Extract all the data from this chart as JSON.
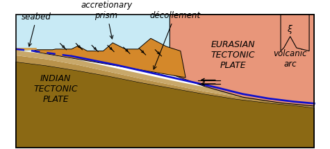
{
  "bg_color": "#ffffff",
  "ocean_color": "#c8eaf5",
  "indian_plate_dark": "#8b6914",
  "indian_plate_mid": "#b8924a",
  "indian_plate_light": "#c8a86a",
  "eurasian_color": "#e8967a",
  "sediment_orange": "#d4882a",
  "sediment_light": "#e8b870",
  "thin_sed_color": "#d4a050",
  "decollement_color": "#1010cc",
  "seabed_label": "seabed",
  "accretionary_label": "accretionary\nprism",
  "decollement_label": "décollement",
  "volcanic_arc_label": "volcanic\narc",
  "indian_label": "INDIAN\nTECTONIC\nPLATE",
  "eurasian_label": "EURASIAN\nTECTONIC\nPLATE",
  "label_fontsize": 8.5,
  "plate_fontsize": 9
}
